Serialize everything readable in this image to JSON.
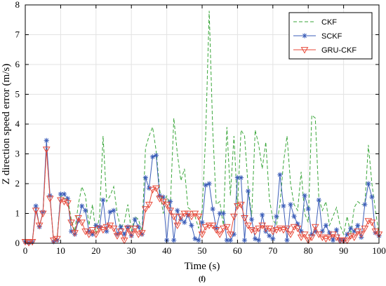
{
  "chart_data": {
    "type": "line",
    "title": "",
    "caption": "(f)",
    "xlabel": "Time (s)",
    "ylabel": "Z direction speed error (m/s)",
    "xlim": [
      0,
      100
    ],
    "ylim": [
      0,
      8
    ],
    "xticks": [
      0,
      10,
      20,
      30,
      40,
      50,
      60,
      70,
      80,
      90,
      100
    ],
    "yticks": [
      0,
      1,
      2,
      3,
      4,
      5,
      6,
      7,
      8
    ],
    "grid": true,
    "legend_position": "top-right",
    "x": [
      0,
      1,
      2,
      3,
      4,
      5,
      6,
      7,
      8,
      9,
      10,
      11,
      12,
      13,
      14,
      15,
      16,
      17,
      18,
      19,
      20,
      21,
      22,
      23,
      24,
      25,
      26,
      27,
      28,
      29,
      30,
      31,
      32,
      33,
      34,
      35,
      36,
      37,
      38,
      39,
      40,
      41,
      42,
      43,
      44,
      45,
      46,
      47,
      48,
      49,
      50,
      51,
      52,
      53,
      54,
      55,
      56,
      57,
      58,
      59,
      60,
      61,
      62,
      63,
      64,
      65,
      66,
      67,
      68,
      69,
      70,
      71,
      72,
      73,
      74,
      75,
      76,
      77,
      78,
      79,
      80,
      81,
      82,
      83,
      84,
      85,
      86,
      87,
      88,
      89,
      90,
      91,
      92,
      93,
      94,
      95,
      96,
      97,
      98,
      99,
      100
    ],
    "series": [
      {
        "name": "CKF",
        "color": "#3aa63a",
        "style": "dashed",
        "marker": "none",
        "values": [
          0.05,
          0.02,
          0.08,
          1.2,
          0.6,
          1.0,
          3.2,
          1.5,
          0.1,
          0.2,
          1.6,
          1.5,
          1.5,
          0.8,
          0.4,
          1.3,
          1.9,
          1.6,
          0.6,
          1.3,
          0.3,
          0.9,
          3.6,
          1.4,
          1.6,
          1.9,
          1.0,
          0.5,
          0.7,
          1.3,
          0.4,
          0.9,
          0.8,
          0.4,
          3.2,
          3.6,
          3.9,
          3.1,
          1.8,
          1.0,
          1.6,
          1.2,
          4.2,
          3.0,
          2.1,
          2.5,
          1.2,
          1.1,
          0.9,
          0.5,
          1.1,
          3.6,
          7.8,
          3.8,
          1.3,
          1.4,
          0.6,
          3.9,
          1.6,
          3.6,
          1.2,
          3.8,
          3.6,
          1.9,
          0.9,
          3.8,
          3.3,
          2.5,
          3.4,
          1.5,
          0.8,
          0.6,
          1.3,
          2.7,
          3.6,
          2.0,
          1.3,
          1.1,
          2.4,
          1.0,
          0.7,
          4.3,
          4.2,
          1.5,
          1.1,
          1.4,
          0.6,
          0.9,
          1.2,
          0.6,
          0.3,
          0.9,
          0.3,
          1.2,
          1.4,
          1.3,
          1.3,
          3.3,
          2.0,
          1.1,
          0.3
        ]
      },
      {
        "name": "SCKF",
        "color": "#3b5db8",
        "style": "solid",
        "marker": "asterisk",
        "values": [
          0.05,
          0.02,
          0.05,
          1.25,
          0.55,
          1.05,
          3.45,
          1.6,
          0.05,
          0.1,
          1.65,
          1.65,
          1.5,
          0.4,
          0.3,
          0.75,
          1.25,
          1.1,
          0.4,
          0.3,
          0.6,
          0.55,
          1.45,
          0.4,
          1.05,
          1.1,
          0.3,
          0.55,
          0.3,
          0.55,
          0.25,
          0.8,
          0.55,
          0.3,
          2.2,
          1.85,
          2.9,
          2.95,
          1.6,
          1.55,
          0.1,
          1.4,
          0.1,
          1.1,
          0.8,
          0.7,
          0.95,
          0.6,
          0.15,
          0.1,
          0.7,
          1.95,
          2.0,
          1.15,
          0.5,
          1.0,
          1.0,
          0.1,
          0.1,
          0.3,
          2.2,
          2.2,
          0.1,
          1.75,
          0.8,
          0.15,
          0.1,
          0.95,
          0.4,
          0.25,
          0.15,
          0.9,
          2.3,
          1.25,
          0.1,
          1.3,
          0.9,
          0.65,
          0.4,
          1.6,
          1.15,
          0.3,
          0.4,
          1.45,
          0.4,
          0.6,
          0.35,
          0.1,
          0.45,
          0.1,
          0.1,
          0.3,
          0.5,
          0.4,
          0.6,
          0.2,
          1.3,
          2.0,
          1.55,
          0.35,
          0.25
        ]
      },
      {
        "name": "GRU-CKF",
        "color": "#e84a3a",
        "style": "solid",
        "marker": "triangle-down",
        "values": [
          0.05,
          0.02,
          0.05,
          1.1,
          0.6,
          1.0,
          3.15,
          1.5,
          0.1,
          0.15,
          1.45,
          1.4,
          1.35,
          0.7,
          0.35,
          0.85,
          0.7,
          0.4,
          0.3,
          0.45,
          0.3,
          0.5,
          0.45,
          0.55,
          0.6,
          0.5,
          0.25,
          0.4,
          0.1,
          0.5,
          0.3,
          0.5,
          0.3,
          0.35,
          1.15,
          1.3,
          1.8,
          1.85,
          1.5,
          1.4,
          1.3,
          1.1,
          0.9,
          0.6,
          0.9,
          1.0,
          1.0,
          0.9,
          1.0,
          0.9,
          0.3,
          0.55,
          0.6,
          0.6,
          0.45,
          0.3,
          0.5,
          0.55,
          0.3,
          0.9,
          1.25,
          1.3,
          0.85,
          0.6,
          0.45,
          0.4,
          0.5,
          0.6,
          0.5,
          0.5,
          0.4,
          0.45,
          0.5,
          0.45,
          0.5,
          0.3,
          0.55,
          0.5,
          0.2,
          0.3,
          0.1,
          0.2,
          0.55,
          0.3,
          0.2,
          0.15,
          0.2,
          0.3,
          0.2,
          0.1,
          0.1,
          0.1,
          0.25,
          0.2,
          0.4,
          0.3,
          0.5,
          0.75,
          0.7,
          0.4,
          0.3
        ]
      }
    ]
  }
}
